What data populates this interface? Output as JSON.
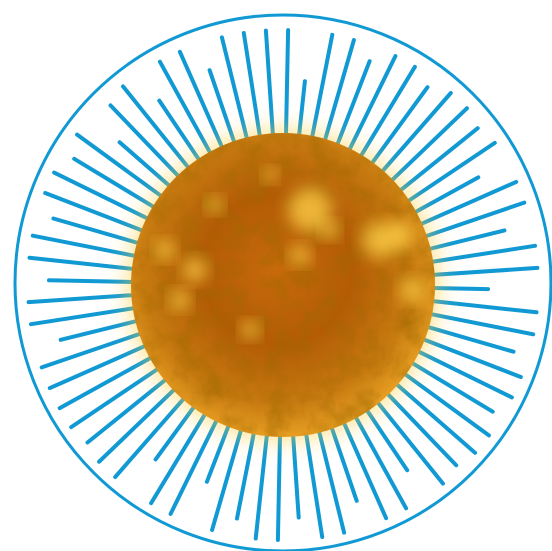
{
  "illustration": {
    "subject": "sun-icon",
    "colors": {
      "ring": "#1199d4",
      "rays": "#1199d4",
      "sun_core": "#ffd24a",
      "sun_mid": "#e08a10",
      "sun_dark": "#6a2d00",
      "glow": "#ffcf33",
      "background": "#ffffff"
    }
  }
}
